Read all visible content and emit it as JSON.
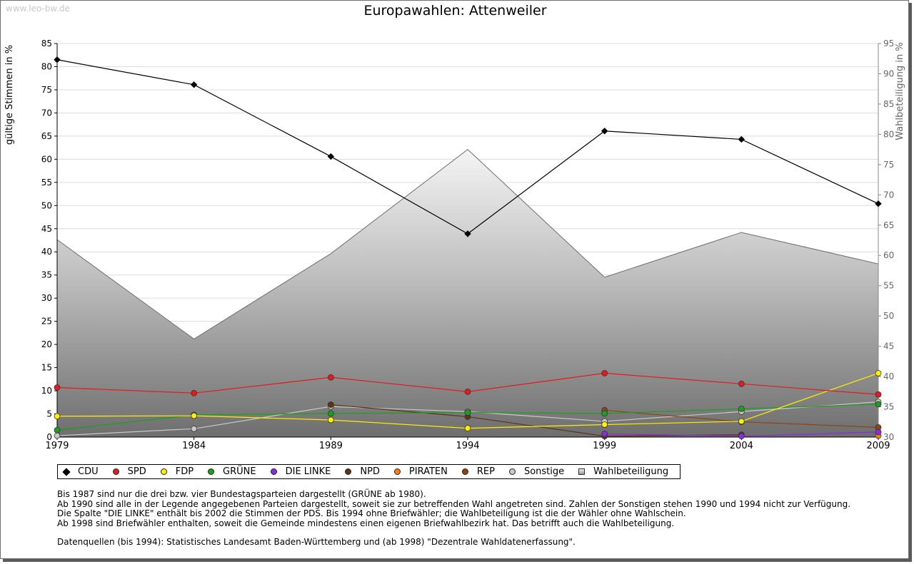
{
  "watermark": "www.leo-bw.de",
  "chart_data": {
    "type": "line",
    "title": "Europawahlen: Attenweiler",
    "ylabel": "gültige Stimmen in %",
    "y2label": "Wahlbeteiligung in %",
    "ylim": [
      0,
      85
    ],
    "y2lim": [
      30,
      95
    ],
    "yticks": [
      "0",
      "5",
      "10",
      "15",
      "20",
      "25",
      "30",
      "35",
      "40",
      "45",
      "50",
      "55",
      "60",
      "65",
      "70",
      "75",
      "80",
      "85"
    ],
    "y2ticks": [
      "30",
      "35",
      "40",
      "45",
      "50",
      "55",
      "60",
      "65",
      "70",
      "75",
      "80",
      "85",
      "90",
      "95"
    ],
    "categories": [
      "1979",
      "1984",
      "1989",
      "1994",
      "1999",
      "2004",
      "2009"
    ],
    "series": [
      {
        "name": "CDU",
        "color": "#000000",
        "values": [
          81.5,
          76.1,
          60.6,
          43.9,
          66.1,
          64.3,
          50.4
        ]
      },
      {
        "name": "SPD",
        "color": "#e41a1c",
        "values": [
          10.7,
          9.5,
          12.9,
          9.8,
          13.8,
          11.5,
          9.2
        ]
      },
      {
        "name": "FDP",
        "color": "#ffef00",
        "values": [
          4.5,
          4.6,
          3.7,
          1.9,
          2.7,
          3.4,
          13.8
        ]
      },
      {
        "name": "GRÜNE",
        "color": "#1e9e1e",
        "values": [
          1.5,
          4.8,
          5.1,
          5.3,
          5.1,
          6.1,
          7.1
        ]
      },
      {
        "name": "DIE LINKE",
        "color": "#8a2be2",
        "values": [
          null,
          null,
          null,
          null,
          0.7,
          0.2,
          1.1
        ]
      },
      {
        "name": "NPD",
        "color": "#5c3317",
        "values": [
          null,
          null,
          7.0,
          4.4,
          0.2,
          0.5,
          null
        ]
      },
      {
        "name": "PIRATEN",
        "color": "#ff7f0e",
        "values": [
          null,
          null,
          null,
          null,
          null,
          null,
          0.3
        ]
      },
      {
        "name": "REP",
        "color": "#8b4513",
        "values": [
          null,
          null,
          null,
          null,
          5.8,
          3.3,
          2.1
        ]
      },
      {
        "name": "Sonstige",
        "color": "#c8c8c8",
        "values": [
          0.3,
          1.8,
          6.6,
          5.5,
          3.4,
          5.5,
          7.6
        ]
      }
    ],
    "turnout": {
      "name": "Wahlbeteiligung",
      "values": [
        62.6,
        46.2,
        60.3,
        77.5,
        56.4,
        63.8,
        58.6
      ]
    }
  },
  "legend": [
    {
      "label": "CDU",
      "color": "#000000",
      "shape": "circle"
    },
    {
      "label": "SPD",
      "color": "#e41a1c",
      "shape": "circle"
    },
    {
      "label": "FDP",
      "color": "#ffef00",
      "shape": "circle"
    },
    {
      "label": "GRÜNE",
      "color": "#1e9e1e",
      "shape": "circle"
    },
    {
      "label": "DIE LINKE",
      "color": "#8a2be2",
      "shape": "circle"
    },
    {
      "label": "NPD",
      "color": "#5c3317",
      "shape": "circle"
    },
    {
      "label": "PIRATEN",
      "color": "#ff7f0e",
      "shape": "circle"
    },
    {
      "label": "REP",
      "color": "#8b4513",
      "shape": "circle"
    },
    {
      "label": "Sonstige",
      "color": "#c8c8c8",
      "shape": "circle"
    },
    {
      "label": "Wahlbeteiligung",
      "color": "#aaaaaa",
      "shape": "square"
    }
  ],
  "notes": [
    "Bis 1987 sind nur die drei bzw. vier Bundestagsparteien dargestellt (GRÜNE ab 1980).",
    "Ab 1990 sind alle in der Legende angegebenen Parteien dargestellt, soweit sie zur betreffenden Wahl angetreten sind. Zahlen der Sonstigen stehen 1990 und 1994 nicht zur Verfügung.",
    "Die Spalte \"DIE LINKE\" enthält bis 2002 die Stimmen der PDS. Bis 1994 ohne Briefwähler; die Wahlbeteiligung ist die der Wähler ohne Wahlschein.",
    "Ab 1998 sind Briefwähler enthalten, soweit die Gemeinde mindestens einen eigenen Briefwahlbezirk hat. Das betrifft auch die Wahlbeteiligung."
  ],
  "sources": "Datenquellen (bis 1994): Statistisches Landesamt Baden-Württemberg und (ab 1998) \"Dezentrale Wahldatenerfassung\"."
}
